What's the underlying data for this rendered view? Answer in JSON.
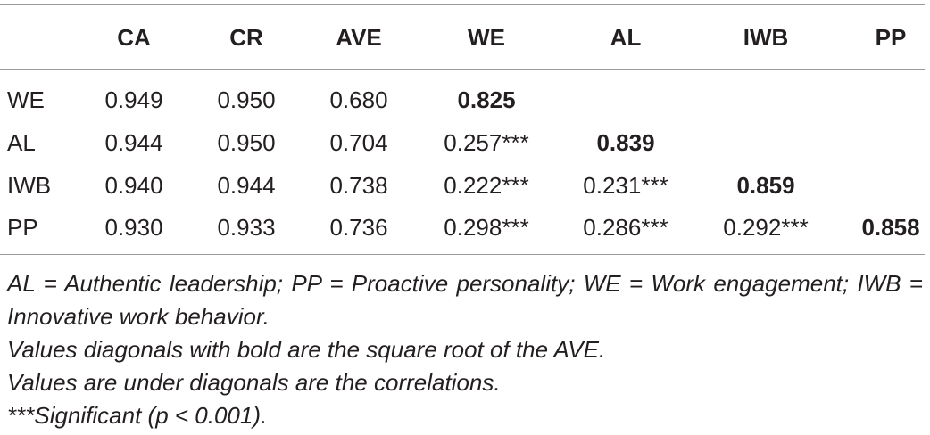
{
  "table": {
    "columns": [
      "CA",
      "CR",
      "AVE",
      "WE",
      "AL",
      "IWB",
      "PP"
    ],
    "rows": [
      {
        "label": "WE",
        "cells": [
          "0.949",
          "0.950",
          "0.680",
          "0.825"
        ]
      },
      {
        "label": "AL",
        "cells": [
          "0.944",
          "0.950",
          "0.704",
          "0.257***",
          "0.839"
        ]
      },
      {
        "label": "IWB",
        "cells": [
          "0.940",
          "0.944",
          "0.738",
          "0.222***",
          "0.231***",
          "0.859"
        ]
      },
      {
        "label": "PP",
        "cells": [
          "0.930",
          "0.933",
          "0.736",
          "0.298***",
          "0.286***",
          "0.292***",
          "0.858"
        ]
      }
    ],
    "notes": [
      "AL = Authentic leadership; PP = Proactive personality; WE = Work engagement; IWB = Innovative work behavior.",
      "Values diagonals with bold are the square root of the AVE.",
      "Values are under diagonals are the correlations.",
      "***Significant (p < 0.001)."
    ]
  }
}
